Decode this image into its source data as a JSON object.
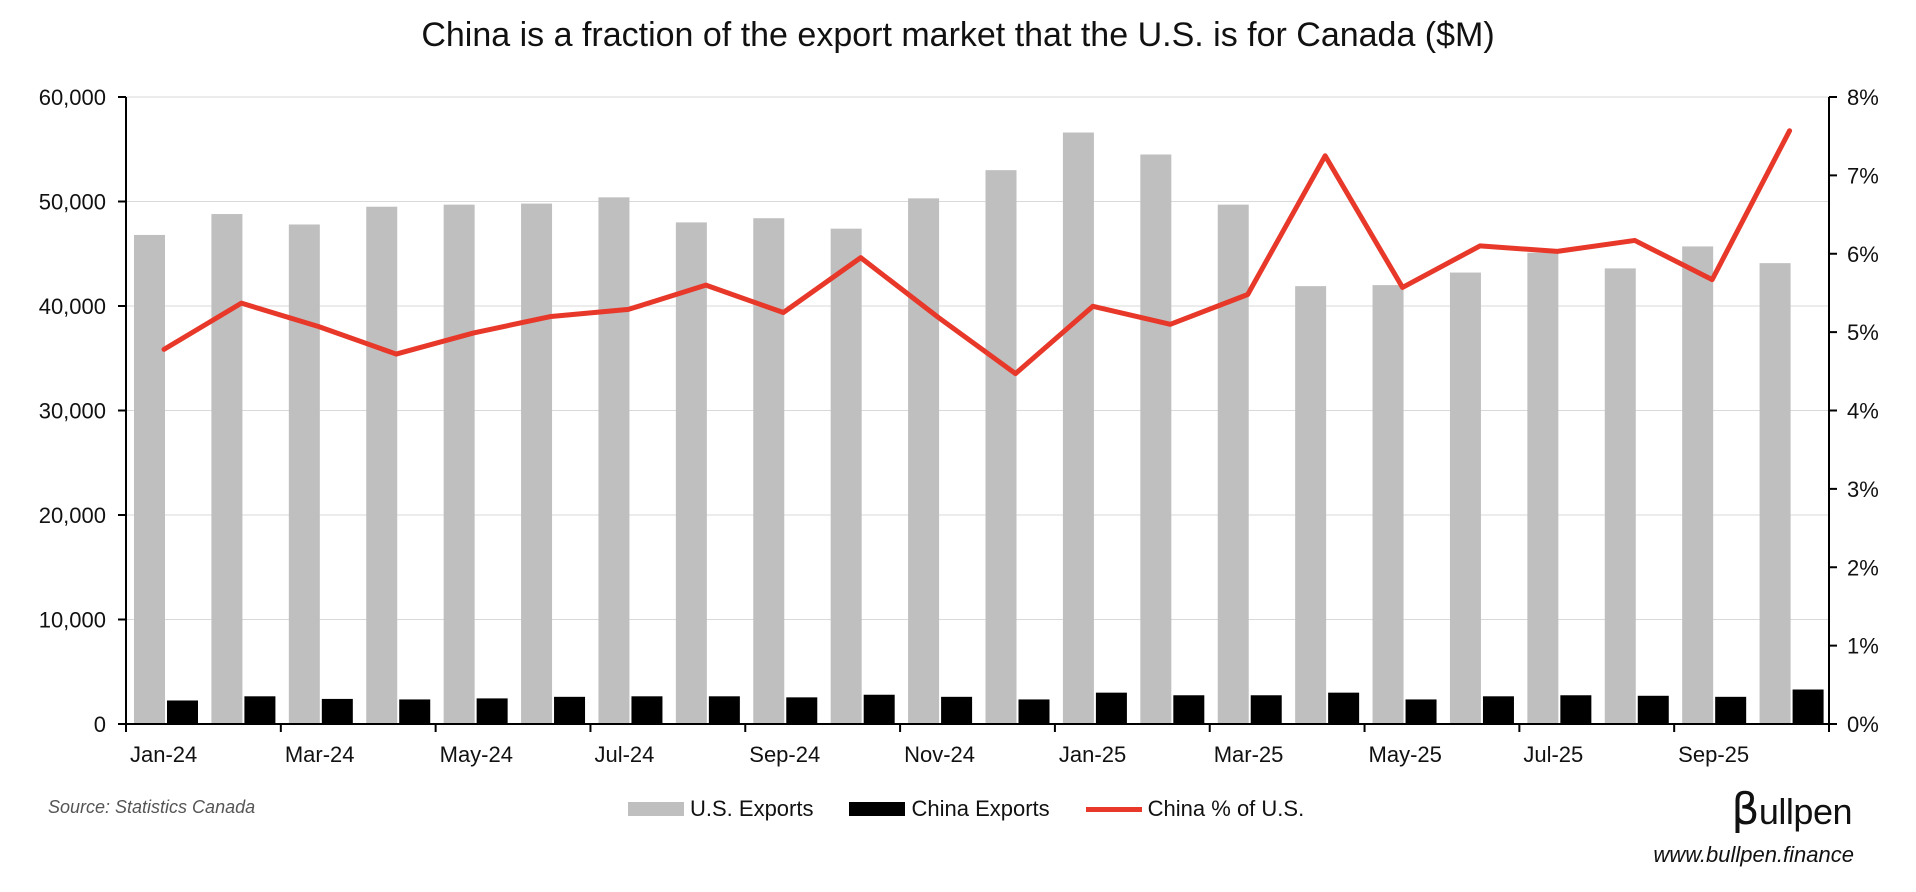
{
  "chart_data": {
    "type": "bar",
    "title": "China is a fraction of the export market that the U.S. is for Canada ($M)",
    "categories": [
      "Jan-24",
      "Feb-24",
      "Mar-24",
      "Apr-24",
      "May-24",
      "Jun-24",
      "Jul-24",
      "Aug-24",
      "Sep-24",
      "Oct-24",
      "Nov-24",
      "Dec-24",
      "Jan-25",
      "Feb-25",
      "Mar-25",
      "Apr-25",
      "May-25",
      "Jun-25",
      "Jul-25",
      "Aug-25",
      "Sep-25",
      "Oct-25"
    ],
    "x_tick_labels": [
      "Jan-24",
      "Mar-24",
      "May-24",
      "Jul-24",
      "Sep-24",
      "Nov-24",
      "Jan-25",
      "Mar-25",
      "May-25",
      "Jul-25",
      "Sep-25"
    ],
    "series": [
      {
        "name": "U.S. Exports",
        "type": "bar",
        "axis": "left",
        "color": "#bfbfbf",
        "values": [
          46800,
          48800,
          47800,
          49500,
          49700,
          49800,
          50400,
          48000,
          48400,
          47400,
          50300,
          53000,
          56600,
          54500,
          49700,
          41900,
          42000,
          43200,
          45100,
          43600,
          45700,
          44100
        ]
      },
      {
        "name": "China Exports",
        "type": "bar",
        "axis": "left",
        "color": "#000000",
        "values": [
          2250,
          2650,
          2400,
          2350,
          2450,
          2600,
          2650,
          2650,
          2550,
          2800,
          2600,
          2350,
          3000,
          2750,
          2750,
          3000,
          2350,
          2650,
          2750,
          2700,
          2600,
          3300
        ]
      },
      {
        "name": "China % of U.S.",
        "type": "line",
        "axis": "right",
        "color": "#e8382a",
        "values": [
          4.78,
          5.37,
          5.07,
          4.72,
          4.99,
          5.2,
          5.29,
          5.6,
          5.25,
          5.95,
          5.19,
          4.47,
          5.33,
          5.1,
          5.48,
          7.25,
          5.57,
          6.1,
          6.03,
          6.17,
          5.67,
          7.57
        ]
      }
    ],
    "y_left": {
      "min": 0,
      "max": 60000,
      "ticks": [
        0,
        10000,
        20000,
        30000,
        40000,
        50000,
        60000
      ],
      "tick_labels": [
        "0",
        "10,000",
        "20,000",
        "30,000",
        "40,000",
        "50,000",
        "60,000"
      ]
    },
    "y_right": {
      "min": 0,
      "max": 8,
      "ticks": [
        0,
        1,
        2,
        3,
        4,
        5,
        6,
        7,
        8
      ],
      "tick_labels": [
        "0%",
        "1%",
        "2%",
        "3%",
        "4%",
        "5%",
        "6%",
        "7%",
        "8%"
      ]
    },
    "grid": "horizontal",
    "legend_position": "bottom-center",
    "source": "Source: Statistics Canada"
  },
  "branding": {
    "logo_beta": "β",
    "logo_rest": "ullpen",
    "url": "www.bullpen.finance"
  }
}
